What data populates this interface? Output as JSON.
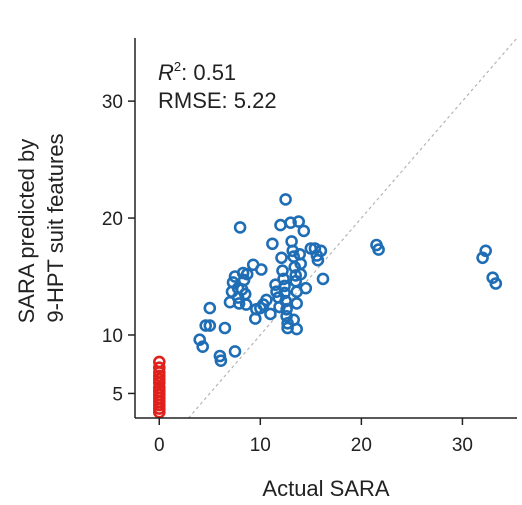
{
  "chart_data": {
    "type": "scatter",
    "title": "",
    "xlabel": "Actual SARA",
    "ylabel_lines": [
      "SARA predicted by",
      "9-HPT suit features"
    ],
    "xlim": [
      -2.4,
      35.4
    ],
    "ylim": [
      2.9,
      35.4
    ],
    "xticks": [
      0,
      10,
      20,
      30
    ],
    "yticks": [
      5,
      10,
      20,
      30
    ],
    "grid": false,
    "reference_line": "identity (y = x), dashed grey",
    "annotations": {
      "r2_label": "R",
      "r2_sup": "2",
      "r2_value": ": 0.51",
      "rmse": "RMSE: 5.22"
    },
    "series": [
      {
        "color": "#e0201b",
        "points": [
          [
            0,
            7.7
          ],
          [
            0,
            7.2
          ],
          [
            0,
            6.8
          ],
          [
            0,
            6.5
          ],
          [
            0,
            6.2
          ],
          [
            0,
            5.9
          ],
          [
            0,
            5.5
          ],
          [
            0,
            5.2
          ],
          [
            0,
            4.9
          ],
          [
            0,
            4.6
          ],
          [
            0,
            4.3
          ],
          [
            0,
            4.0
          ],
          [
            0,
            3.7
          ],
          [
            0,
            3.4
          ]
        ]
      },
      {
        "color": "#1f6eb5",
        "points": [
          [
            4.0,
            9.6
          ],
          [
            4.3,
            9.0
          ],
          [
            4.6,
            10.8
          ],
          [
            5.0,
            10.8
          ],
          [
            5.0,
            12.3
          ],
          [
            6.0,
            8.2
          ],
          [
            6.1,
            7.8
          ],
          [
            7.5,
            8.6
          ],
          [
            6.5,
            10.6
          ],
          [
            7.0,
            12.8
          ],
          [
            7.2,
            13.7
          ],
          [
            7.3,
            14.5
          ],
          [
            7.5,
            15.0
          ],
          [
            7.8,
            14.0
          ],
          [
            7.8,
            13.2
          ],
          [
            7.9,
            12.7
          ],
          [
            8.0,
            19.2
          ],
          [
            8.2,
            13.9
          ],
          [
            8.3,
            15.3
          ],
          [
            8.4,
            14.7
          ],
          [
            8.5,
            13.5
          ],
          [
            8.6,
            12.6
          ],
          [
            8.7,
            15.2
          ],
          [
            9.3,
            16.0
          ],
          [
            10.1,
            15.6
          ],
          [
            9.5,
            11.4
          ],
          [
            9.6,
            12.2
          ],
          [
            10.0,
            12.3
          ],
          [
            10.3,
            12.6
          ],
          [
            10.6,
            13.0
          ],
          [
            11.0,
            11.8
          ],
          [
            11.2,
            17.8
          ],
          [
            11.5,
            14.3
          ],
          [
            11.6,
            13.7
          ],
          [
            11.8,
            13.2
          ],
          [
            11.9,
            12.4
          ],
          [
            12.0,
            19.4
          ],
          [
            12.1,
            16.6
          ],
          [
            12.2,
            15.5
          ],
          [
            12.3,
            14.8
          ],
          [
            12.4,
            14.2
          ],
          [
            12.4,
            13.6
          ],
          [
            12.5,
            12.9
          ],
          [
            12.6,
            12.2
          ],
          [
            12.6,
            11.6
          ],
          [
            12.7,
            11.0
          ],
          [
            12.5,
            21.6
          ],
          [
            13.0,
            19.6
          ],
          [
            13.1,
            18.0
          ],
          [
            13.2,
            17.2
          ],
          [
            13.3,
            16.7
          ],
          [
            13.4,
            15.8
          ],
          [
            13.5,
            15.1
          ],
          [
            13.5,
            14.6
          ],
          [
            13.6,
            13.7
          ],
          [
            13.6,
            12.7
          ],
          [
            12.7,
            10.6
          ],
          [
            13.3,
            11.3
          ],
          [
            13.6,
            10.5
          ],
          [
            13.9,
            16.9
          ],
          [
            14.0,
            16.1
          ],
          [
            13.8,
            19.7
          ],
          [
            14.0,
            15.2
          ],
          [
            14.3,
            18.9
          ],
          [
            14.5,
            14.0
          ],
          [
            15.0,
            17.4
          ],
          [
            15.4,
            17.4
          ],
          [
            15.6,
            16.8
          ],
          [
            16.0,
            17.2
          ],
          [
            15.7,
            16.4
          ],
          [
            16.2,
            14.8
          ],
          [
            21.5,
            17.7
          ],
          [
            21.7,
            17.3
          ],
          [
            32.0,
            16.6
          ],
          [
            32.3,
            17.2
          ],
          [
            33.0,
            14.9
          ],
          [
            33.3,
            14.4
          ]
        ]
      }
    ]
  }
}
